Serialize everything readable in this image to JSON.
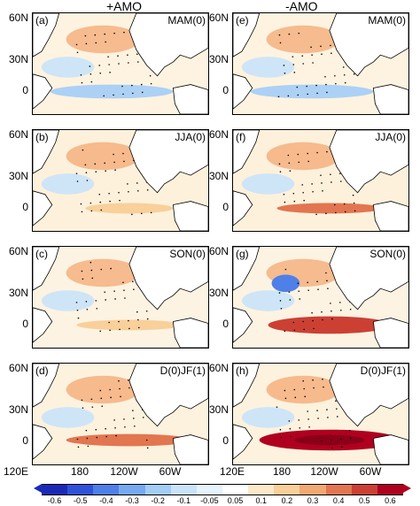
{
  "columns": {
    "left_title": "+AMO",
    "right_title": "-AMO"
  },
  "panels": [
    {
      "label": "(a)",
      "season": "MAM(0)"
    },
    {
      "label": "(e)",
      "season": "MAM(0)"
    },
    {
      "label": "(b)",
      "season": "JJA(0)"
    },
    {
      "label": "(f)",
      "season": "JJA(0)"
    },
    {
      "label": "(c)",
      "season": "SON(0)"
    },
    {
      "label": "(g)",
      "season": "SON(0)"
    },
    {
      "label": "(d)",
      "season": "D(0)JF(1)"
    },
    {
      "label": "(h)",
      "season": "D(0)JF(1)"
    }
  ],
  "y_axis_labels": [
    "60N",
    "30N",
    "0"
  ],
  "x_axis_labels": [
    "120E",
    "180",
    "120W",
    "60W",
    "120E",
    "180",
    "120W",
    "60W"
  ],
  "colorbar": {
    "ticks": [
      "-0.6",
      "-0.5",
      "-0.4",
      "-0.3",
      "-0.2",
      "-0.1",
      "-0.05",
      "0.05",
      "0.1",
      "0.2",
      "0.3",
      "0.4",
      "0.5",
      "0.6"
    ],
    "colors": [
      "#1a2ab8",
      "#2f52d9",
      "#4f7fe8",
      "#77a9f2",
      "#a3cdf7",
      "#c9e3fa",
      "#e6f2fc",
      "#ffffff",
      "#fde9c8",
      "#f9cf9a",
      "#f2a872",
      "#e27650",
      "#cc4034",
      "#b00020"
    ]
  }
}
